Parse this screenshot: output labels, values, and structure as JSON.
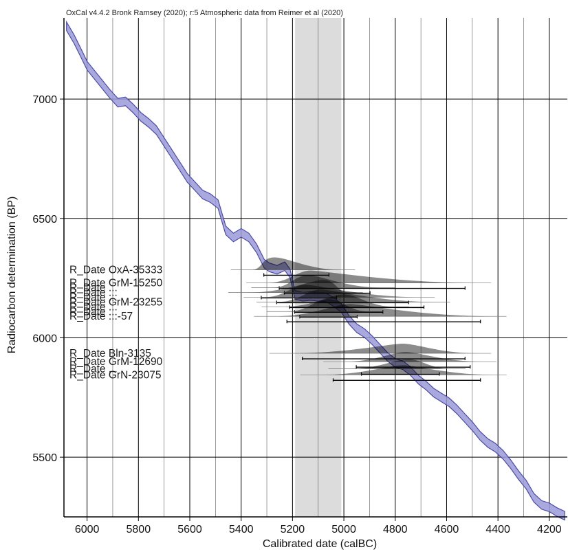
{
  "header": "OxCal v4.4.2 Bronk Ramsey (2020); r:5 Atmospheric data from Reimer et al (2020)",
  "chart_data": {
    "type": "scatter",
    "title": "",
    "xlabel": "Calibrated date (calBC)",
    "ylabel": "Radiocarbon determination (BP)",
    "xlim": [
      6090,
      4130
    ],
    "ylim": [
      5250,
      7340
    ],
    "x_ticks": [
      6000,
      5800,
      5600,
      5400,
      5200,
      5000,
      4800,
      4600,
      4400,
      4200
    ],
    "y_ticks": [
      7000,
      6500,
      6000,
      5500
    ],
    "grid": true,
    "highlight_band": {
      "from": 5190,
      "to": 5010
    },
    "colors": {
      "curve": "#4a4ab0",
      "band": "#dcdcdc",
      "density": "#000000"
    },
    "curve": [
      {
        "x": 6080,
        "y": 7305
      },
      {
        "x": 6050,
        "y": 7250
      },
      {
        "x": 6020,
        "y": 7185
      },
      {
        "x": 6000,
        "y": 7140
      },
      {
        "x": 5970,
        "y": 7100
      },
      {
        "x": 5940,
        "y": 7060
      },
      {
        "x": 5910,
        "y": 7020
      },
      {
        "x": 5880,
        "y": 6985
      },
      {
        "x": 5850,
        "y": 6990
      },
      {
        "x": 5820,
        "y": 6960
      },
      {
        "x": 5790,
        "y": 6925
      },
      {
        "x": 5760,
        "y": 6900
      },
      {
        "x": 5730,
        "y": 6870
      },
      {
        "x": 5700,
        "y": 6820
      },
      {
        "x": 5670,
        "y": 6770
      },
      {
        "x": 5640,
        "y": 6720
      },
      {
        "x": 5610,
        "y": 6670
      },
      {
        "x": 5580,
        "y": 6635
      },
      {
        "x": 5550,
        "y": 6600
      },
      {
        "x": 5520,
        "y": 6585
      },
      {
        "x": 5490,
        "y": 6560
      },
      {
        "x": 5460,
        "y": 6450
      },
      {
        "x": 5430,
        "y": 6420
      },
      {
        "x": 5400,
        "y": 6440
      },
      {
        "x": 5370,
        "y": 6420
      },
      {
        "x": 5340,
        "y": 6375
      },
      {
        "x": 5310,
        "y": 6310
      },
      {
        "x": 5290,
        "y": 6295
      },
      {
        "x": 5260,
        "y": 6285
      },
      {
        "x": 5230,
        "y": 6300
      },
      {
        "x": 5210,
        "y": 6270
      },
      {
        "x": 5190,
        "y": 6180
      },
      {
        "x": 5160,
        "y": 6172
      },
      {
        "x": 5130,
        "y": 6175
      },
      {
        "x": 5100,
        "y": 6172
      },
      {
        "x": 5070,
        "y": 6170
      },
      {
        "x": 5040,
        "y": 6150
      },
      {
        "x": 5010,
        "y": 6125
      },
      {
        "x": 4980,
        "y": 6075
      },
      {
        "x": 4950,
        "y": 6040
      },
      {
        "x": 4920,
        "y": 6020
      },
      {
        "x": 4890,
        "y": 5990
      },
      {
        "x": 4860,
        "y": 5955
      },
      {
        "x": 4830,
        "y": 5920
      },
      {
        "x": 4800,
        "y": 5895
      },
      {
        "x": 4770,
        "y": 5885
      },
      {
        "x": 4740,
        "y": 5860
      },
      {
        "x": 4710,
        "y": 5825
      },
      {
        "x": 4680,
        "y": 5800
      },
      {
        "x": 4650,
        "y": 5770
      },
      {
        "x": 4620,
        "y": 5750
      },
      {
        "x": 4590,
        "y": 5730
      },
      {
        "x": 4560,
        "y": 5700
      },
      {
        "x": 4530,
        "y": 5665
      },
      {
        "x": 4500,
        "y": 5630
      },
      {
        "x": 4470,
        "y": 5590
      },
      {
        "x": 4440,
        "y": 5560
      },
      {
        "x": 4410,
        "y": 5540
      },
      {
        "x": 4380,
        "y": 5510
      },
      {
        "x": 4350,
        "y": 5470
      },
      {
        "x": 4320,
        "y": 5425
      },
      {
        "x": 4290,
        "y": 5385
      },
      {
        "x": 4260,
        "y": 5330
      },
      {
        "x": 4230,
        "y": 5300
      },
      {
        "x": 4200,
        "y": 5290
      },
      {
        "x": 4170,
        "y": 5270
      },
      {
        "x": 4140,
        "y": 5255
      }
    ],
    "curve_width": 18,
    "dates_upper": [
      {
        "y": 6285,
        "label": "R_Date OxA-35333",
        "from": 5360,
        "to": 5010,
        "peak": 5270
      },
      {
        "y": 6230,
        "label": "R_Date GrM-15250",
        "from": 5300,
        "to": 4480,
        "peak": 5130
      },
      {
        "y": 6210,
        "label": "R_Date ...",
        "from": 5280,
        "to": 4850,
        "peak": 5140
      },
      {
        "y": 6190,
        "label": "R_Date ...",
        "from": 5370,
        "to": 4980,
        "peak": 5080
      },
      {
        "y": 6170,
        "label": "R_Date ...",
        "from": 5310,
        "to": 4700,
        "peak": 5150
      },
      {
        "y": 6150,
        "label": "R_Date GrM-23255",
        "from": 5260,
        "to": 4640,
        "peak": 5090
      },
      {
        "y": 6130,
        "label": "R_Date ...",
        "from": 5240,
        "to": 4800,
        "peak": 5000
      },
      {
        "y": 6110,
        "label": "R_Date ...",
        "from": 5220,
        "to": 4900,
        "peak": 5060
      },
      {
        "y": 6090,
        "label": "R_Date ...-57",
        "from": 5270,
        "to": 4420,
        "peak": 4980
      }
    ],
    "dates_lower": [
      {
        "y": 5935,
        "label": "R_Date Bln-3135",
        "from": 5210,
        "to": 4480,
        "peak": 4770
      },
      {
        "y": 5900,
        "label": "R_Date GrM-12690",
        "from": 5000,
        "to": 4460,
        "peak": 4760
      },
      {
        "y": 5870,
        "label": "R_Date ...",
        "from": 4980,
        "to": 4580,
        "peak": 4750
      },
      {
        "y": 5845,
        "label": "R_Date GrN-23075",
        "from": 5090,
        "to": 4420,
        "peak": 4770
      }
    ]
  }
}
